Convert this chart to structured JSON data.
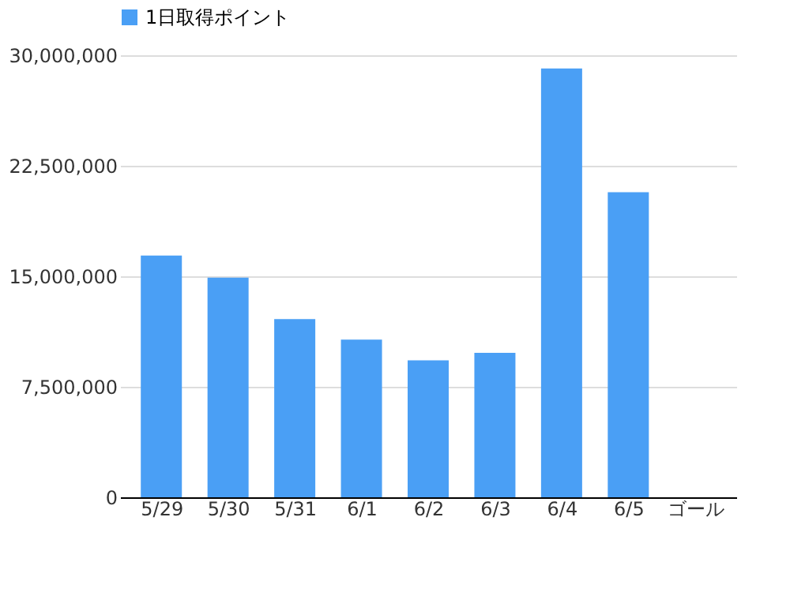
{
  "chart_data": {
    "type": "bar",
    "categories": [
      "5/29",
      "5/30",
      "5/31",
      "6/1",
      "6/2",
      "6/3",
      "6/4",
      "6/5",
      "ゴール"
    ],
    "series": [
      {
        "name": "1日取得ポイント",
        "color": "#4a9ff5",
        "values": [
          16400000,
          14900000,
          12100000,
          10700000,
          9300000,
          9800000,
          29100000,
          20700000,
          null
        ]
      }
    ],
    "ylim": [
      0,
      30000000
    ],
    "yticks": [
      0,
      {
        "value": 7500000,
        "label": "7,500,000"
      },
      {
        "value": 15000000,
        "label": "15,000,000"
      },
      {
        "value": 22500000,
        "label": "22,500,000"
      },
      {
        "value": 30000000,
        "label": "30,000,000"
      }
    ],
    "grid": "y",
    "legend": "top"
  }
}
